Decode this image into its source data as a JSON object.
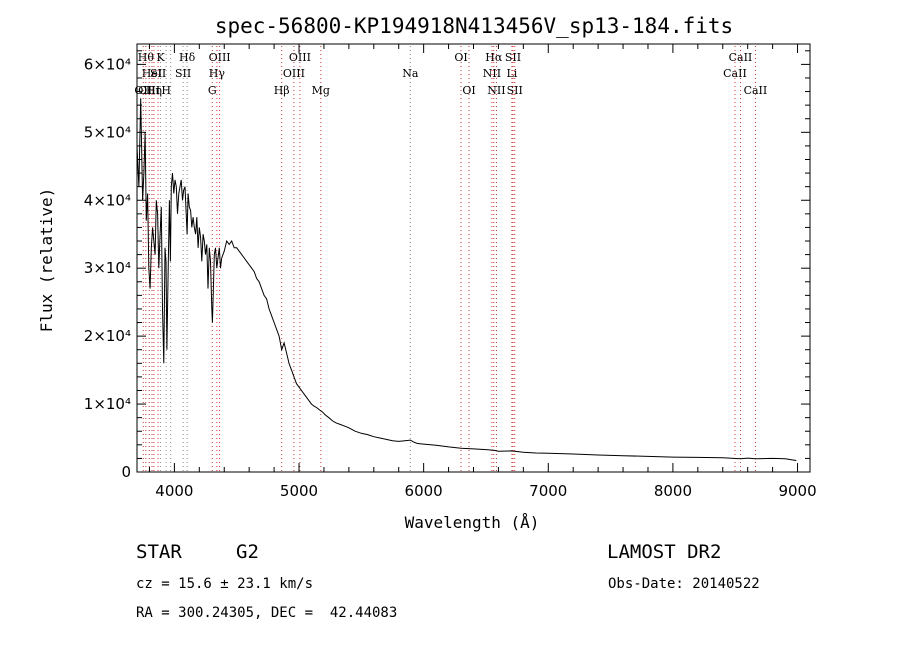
{
  "chart_data": {
    "type": "line",
    "title": "spec-56800-KP194918N413456V_sp13-184.fits",
    "xlabel": "Wavelength (Å)",
    "ylabel": "Flux (relative)",
    "xlim": [
      3700,
      9100
    ],
    "ylim": [
      0,
      63000
    ],
    "xticks": [
      4000,
      5000,
      6000,
      7000,
      8000,
      9000
    ],
    "xtick_labels": [
      "4000",
      "5000",
      "6000",
      "7000",
      "8000",
      "9000"
    ],
    "yticks": [
      0,
      10000,
      20000,
      30000,
      40000,
      50000,
      60000
    ],
    "ytick_labels": [
      "0",
      "1×10⁴",
      "2×10⁴",
      "3×10⁴",
      "4×10⁴",
      "5×10⁴",
      "6×10⁴"
    ],
    "grid": false,
    "series": [
      {
        "x": [
          3700,
          3715,
          3730,
          3745,
          3755,
          3765,
          3775,
          3785,
          3795,
          3805,
          3815,
          3825,
          3835,
          3845,
          3855,
          3865,
          3875,
          3885,
          3895,
          3905,
          3915,
          3925,
          3933,
          3940,
          3950,
          3960,
          3968,
          3975,
          3985,
          3995,
          4005,
          4015,
          4025,
          4035,
          4045,
          4055,
          4065,
          4075,
          4085,
          4095,
          4102,
          4110,
          4120,
          4130,
          4140,
          4150,
          4160,
          4170,
          4180,
          4190,
          4200,
          4210,
          4220,
          4230,
          4240,
          4250,
          4260,
          4270,
          4280,
          4290,
          4300,
          4305,
          4310,
          4320,
          4330,
          4340,
          4350,
          4360,
          4370,
          4380,
          4400,
          4420,
          4440,
          4460,
          4480,
          4500,
          4520,
          4540,
          4560,
          4580,
          4600,
          4620,
          4640,
          4660,
          4680,
          4700,
          4720,
          4740,
          4760,
          4780,
          4800,
          4820,
          4840,
          4861,
          4880,
          4900,
          4920,
          4940,
          4960,
          4980,
          5000,
          5020,
          5040,
          5060,
          5080,
          5100,
          5120,
          5140,
          5160,
          5175,
          5190,
          5210,
          5240,
          5270,
          5300,
          5330,
          5360,
          5400,
          5450,
          5500,
          5550,
          5600,
          5650,
          5700,
          5750,
          5800,
          5850,
          5893,
          5920,
          5950,
          6000,
          6100,
          6200,
          6300,
          6400,
          6500,
          6563,
          6600,
          6700,
          6800,
          6900,
          7000,
          7200,
          7400,
          7600,
          7800,
          8000,
          8200,
          8400,
          8542,
          8600,
          8662,
          8800,
          8900,
          8990
        ],
        "y": [
          48000,
          42000,
          55000,
          40000,
          44000,
          50000,
          37000,
          41000,
          30000,
          27000,
          33000,
          36000,
          34000,
          32000,
          40000,
          38000,
          30000,
          35000,
          39000,
          24000,
          16000,
          33000,
          31000,
          18000,
          30000,
          40000,
          31000,
          42000,
          44000,
          41000,
          43000,
          42000,
          38000,
          41000,
          42000,
          43000,
          40000,
          41500,
          42000,
          38000,
          35000,
          41000,
          39000,
          38500,
          36000,
          37500,
          36000,
          35000,
          37500,
          33000,
          36000,
          34500,
          31000,
          35000,
          34000,
          32000,
          33500,
          27000,
          33000,
          31000,
          24000,
          22000,
          25000,
          32000,
          33000,
          30000,
          31500,
          33000,
          30000,
          31500,
          32500,
          34000,
          33500,
          34000,
          33000,
          33000,
          32500,
          32000,
          31500,
          31000,
          30500,
          30000,
          29500,
          28500,
          28000,
          27000,
          26000,
          25500,
          24000,
          23000,
          22000,
          21000,
          20000,
          18000,
          19000,
          17500,
          16000,
          15000,
          14000,
          13000,
          12500,
          12000,
          11500,
          11000,
          10500,
          10000,
          9700,
          9500,
          9200,
          9000,
          8800,
          8400,
          8000,
          7500,
          7200,
          7000,
          6800,
          6500,
          6000,
          5700,
          5500,
          5200,
          5000,
          4800,
          4600,
          4500,
          4600,
          4700,
          4400,
          4200,
          4100,
          3950,
          3700,
          3500,
          3400,
          3300,
          3200,
          3050,
          3100,
          2900,
          2800,
          2750,
          2650,
          2500,
          2400,
          2300,
          2200,
          2150,
          2100,
          1950,
          2050,
          1950,
          2000,
          1950,
          1700
        ]
      }
    ],
    "lines": [
      {
        "w": 3750,
        "label": "OII",
        "row": 0
      },
      {
        "w": 3798,
        "label": "OIII",
        "row": 0
      },
      {
        "w": 3771,
        "label": "Hθ",
        "row": 2
      },
      {
        "w": 3820,
        "label": "HeI",
        "row": 1
      },
      {
        "w": 3836,
        "label": "Hη",
        "row": 0
      },
      {
        "w": 3869,
        "label": "SII",
        "row": 1
      },
      {
        "w": 3889,
        "label": "K",
        "row": 2
      },
      {
        "w": 3934,
        "label": "H",
        "row": 0
      },
      {
        "w": 3970,
        "label": "",
        "row": -1
      },
      {
        "w": 4070,
        "label": "SII",
        "row": 1
      },
      {
        "w": 4102,
        "label": "Hδ",
        "row": 2
      },
      {
        "w": 4304,
        "label": "G",
        "row": 0
      },
      {
        "w": 4341,
        "label": "Hγ",
        "row": 1
      },
      {
        "w": 4363,
        "label": "OIII",
        "row": 2
      },
      {
        "w": 4861,
        "label": "Hβ",
        "row": 0
      },
      {
        "w": 4959,
        "label": "OIII",
        "row": 1
      },
      {
        "w": 5007,
        "label": "OIII",
        "row": 2
      },
      {
        "w": 5175,
        "label": "Mg",
        "row": 0
      },
      {
        "w": 5893,
        "label": "Na",
        "row": 1
      },
      {
        "w": 6300,
        "label": "OI",
        "row": 2
      },
      {
        "w": 6364,
        "label": "OI",
        "row": 0
      },
      {
        "w": 6548,
        "label": "NII",
        "row": 1
      },
      {
        "w": 6563,
        "label": "Hα",
        "row": 2
      },
      {
        "w": 6584,
        "label": "NII",
        "row": 0
      },
      {
        "w": 6708,
        "label": "Li",
        "row": 1
      },
      {
        "w": 6717,
        "label": "SII",
        "row": 2
      },
      {
        "w": 6731,
        "label": "SII",
        "row": 0
      },
      {
        "w": 8498,
        "label": "CaII",
        "row": 1
      },
      {
        "w": 8542,
        "label": "CaII",
        "row": 2
      },
      {
        "w": 8662,
        "label": "CaII",
        "row": 0
      }
    ]
  },
  "info": {
    "class": "STAR",
    "subclass": "G2",
    "survey": "LAMOST DR2",
    "cz": "cz = 15.6 ± 23.1 km/s",
    "obs_date": "Obs-Date: 20140522",
    "coords": "RA = 300.24305, DEC =  42.44083"
  }
}
